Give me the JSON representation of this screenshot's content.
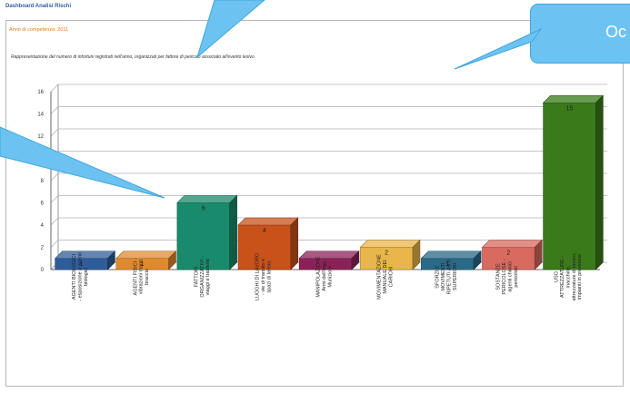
{
  "header": {
    "title": "Dashboard Analisi Rischi"
  },
  "panel": {
    "title": "Anno di competenza: 2011",
    "description": "Rappresentazione del numero di infortuni registrati nell'anno, organizzati per fattore di pericolo associato all'evento lesivo"
  },
  "callout": {
    "text": "Oc"
  },
  "colors": {
    "callout_fill": "#6cc3f2",
    "accent_orange": "#e07b1a",
    "header_blue": "#2f5f9f"
  },
  "chart_data": {
    "type": "bar",
    "title": "",
    "xlabel": "",
    "ylabel": "",
    "ylim": [
      0,
      16
    ],
    "yticks": [
      "0",
      "2",
      "4",
      "6",
      "8",
      "10",
      "12",
      "14",
      "16"
    ],
    "grid": true,
    "legend": "none",
    "categories": [
      [
        "AGENTI BIOLOGICI",
        "- esposizione a agenti",
        "biologici"
      ],
      [
        "AGENTI FISICI -",
        "vibrazioni mano",
        "braccio"
      ],
      [
        "FATTORI",
        "ORGANIZZATIVI -",
        "viaggi e trasferte"
      ],
      [
        "LUOGHI DI LAVORO",
        "- vie di transito e",
        "spazi di lavoro"
      ],
      [
        "MANIPOLAZIONE",
        "Armi dell'uso",
        "Munizioni"
      ],
      [
        "MOVIMENTAZIONE",
        "MANUALE DEI",
        "CARICHI"
      ],
      [
        "SFORZI E",
        "MOVIMENTI",
        "RIPETUTI ARTI",
        "SUPERIORI"
      ],
      [
        "SOSTANZE",
        "PERICOLOSE -",
        "agenti chimici",
        "pericolosi"
      ],
      [
        "USO",
        "ATTREZZATURE -",
        "macchine,",
        "attrezzature di lavoro,",
        "impianti in pressione"
      ]
    ],
    "values": [
      1,
      1,
      6,
      4,
      1,
      2,
      1,
      2,
      15
    ],
    "value_labels": [
      "1",
      "1",
      "6",
      "4",
      "1",
      "2",
      "1",
      "2",
      "15"
    ],
    "colors": [
      "#2f5d9a",
      "#e08a2e",
      "#1a8a6c",
      "#c8521a",
      "#8a2258",
      "#e8b64a",
      "#2a6a88",
      "#d86a60",
      "#3a7a1a"
    ]
  }
}
